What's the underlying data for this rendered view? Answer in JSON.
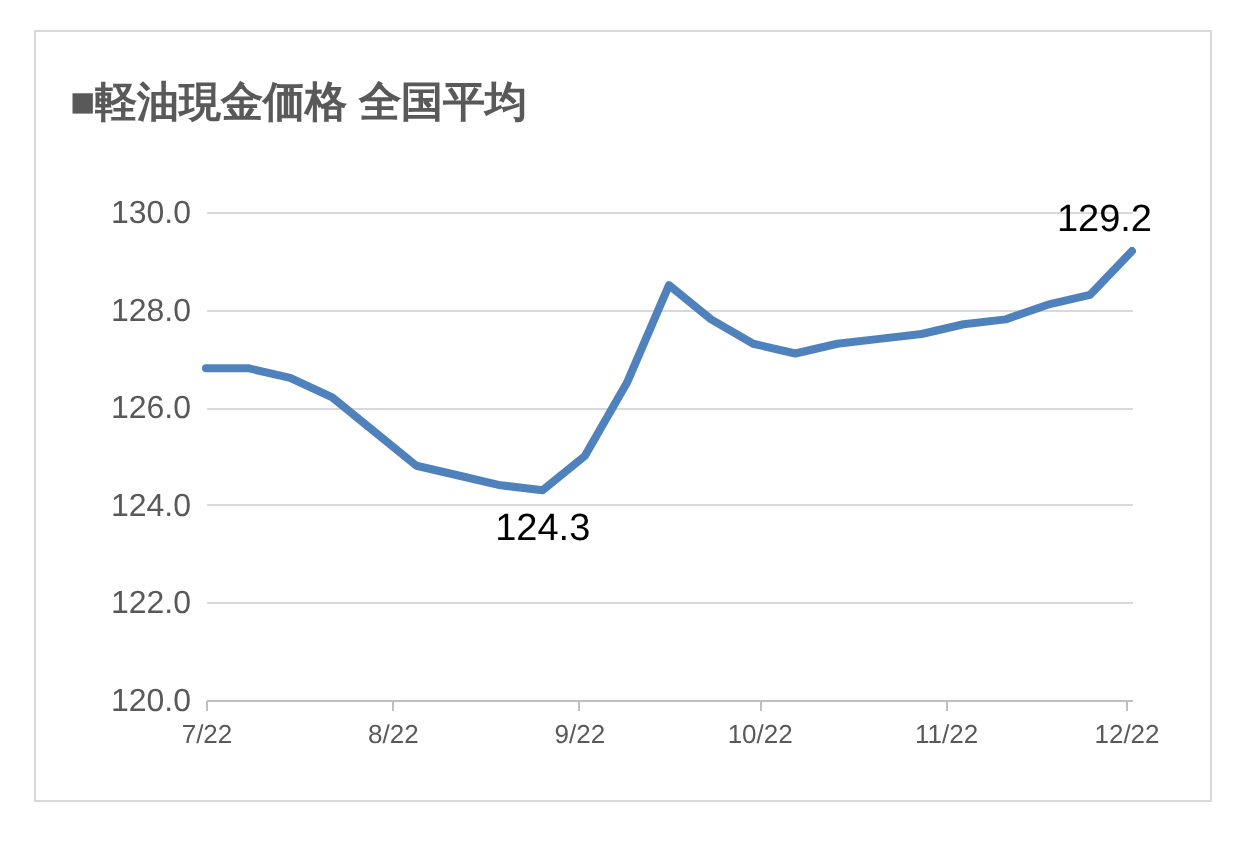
{
  "chart_data": {
    "type": "line",
    "title": "■軽油現金価格 全国平均",
    "x": [
      "--07-22",
      "--07-29",
      "--08-05",
      "--08-12",
      "--08-19",
      "--08-26",
      "--09-02",
      "--09-09",
      "--09-16",
      "--09-23",
      "--09-30",
      "--10-07",
      "--10-14",
      "--10-21",
      "--10-28",
      "--11-04",
      "--11-11",
      "--11-18",
      "--11-25",
      "--12-02",
      "--12-09",
      "--12-16",
      "--12-23"
    ],
    "series": [
      {
        "color": "#4f81bd",
        "values": [
          126.8,
          126.8,
          126.6,
          126.2,
          125.5,
          124.8,
          124.6,
          124.4,
          124.3,
          125.0,
          126.5,
          128.5,
          127.8,
          127.3,
          127.1,
          127.3,
          127.4,
          127.5,
          127.7,
          127.8,
          128.1,
          128.3,
          129.2
        ]
      }
    ],
    "xlim": [
      "--07-22",
      "--12-23"
    ],
    "xticks": [
      {
        "value": "--07-22",
        "label": "7/22"
      },
      {
        "value": "--08-22",
        "label": "8/22"
      },
      {
        "value": "--09-22",
        "label": "9/22"
      },
      {
        "value": "--10-22",
        "label": "10/22"
      },
      {
        "value": "--11-22",
        "label": "11/22"
      },
      {
        "value": "--12-22",
        "label": "12/22"
      }
    ],
    "ylim": [
      120,
      130
    ],
    "yticks": [
      {
        "value": 120,
        "label": "120.0"
      },
      {
        "value": 122,
        "label": "122.0"
      },
      {
        "value": 124,
        "label": "124.0"
      },
      {
        "value": 126,
        "label": "126.0"
      },
      {
        "value": 128,
        "label": "128.0"
      },
      {
        "value": 130,
        "label": "130.0"
      }
    ],
    "annotations": [
      {
        "text": "124.3",
        "x": "--09-16",
        "y": 124.3
      },
      {
        "text": "129.2",
        "x": "--12-23",
        "y": 129.2
      }
    ],
    "grid": "y",
    "legend": false,
    "marker": "none",
    "line_style": "solid"
  }
}
